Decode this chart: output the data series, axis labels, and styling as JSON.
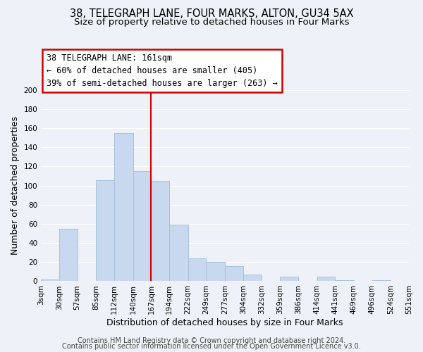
{
  "title1": "38, TELEGRAPH LANE, FOUR MARKS, ALTON, GU34 5AX",
  "title2": "Size of property relative to detached houses in Four Marks",
  "xlabel": "Distribution of detached houses by size in Four Marks",
  "ylabel": "Number of detached properties",
  "bin_edges": [
    3,
    30,
    57,
    85,
    112,
    140,
    167,
    194,
    222,
    249,
    277,
    304,
    332,
    359,
    386,
    414,
    441,
    469,
    496,
    524,
    551
  ],
  "bar_heights": [
    2,
    55,
    0,
    106,
    155,
    115,
    105,
    59,
    24,
    20,
    16,
    7,
    0,
    5,
    0,
    5,
    1,
    0,
    1,
    0
  ],
  "bar_color": "#c8d8ee",
  "bar_edgecolor": "#a8c0dc",
  "vline_x": 167,
  "vline_color": "#cc0000",
  "ylim": [
    0,
    200
  ],
  "yticks": [
    0,
    20,
    40,
    60,
    80,
    100,
    120,
    140,
    160,
    180,
    200
  ],
  "annotation_title": "38 TELEGRAPH LANE: 161sqm",
  "annotation_line1": "← 60% of detached houses are smaller (405)",
  "annotation_line2": "39% of semi-detached houses are larger (263) →",
  "annotation_box_color": "#ffffff",
  "annotation_box_edgecolor": "#cc0000",
  "footer1": "Contains HM Land Registry data © Crown copyright and database right 2024.",
  "footer2": "Contains public sector information licensed under the Open Government Licence v3.0.",
  "background_color": "#eef2f8",
  "grid_color": "#ffffff",
  "title_fontsize": 10.5,
  "subtitle_fontsize": 9.5,
  "axis_label_fontsize": 9,
  "tick_fontsize": 7.5,
  "annotation_fontsize": 8.5,
  "footer_fontsize": 7
}
